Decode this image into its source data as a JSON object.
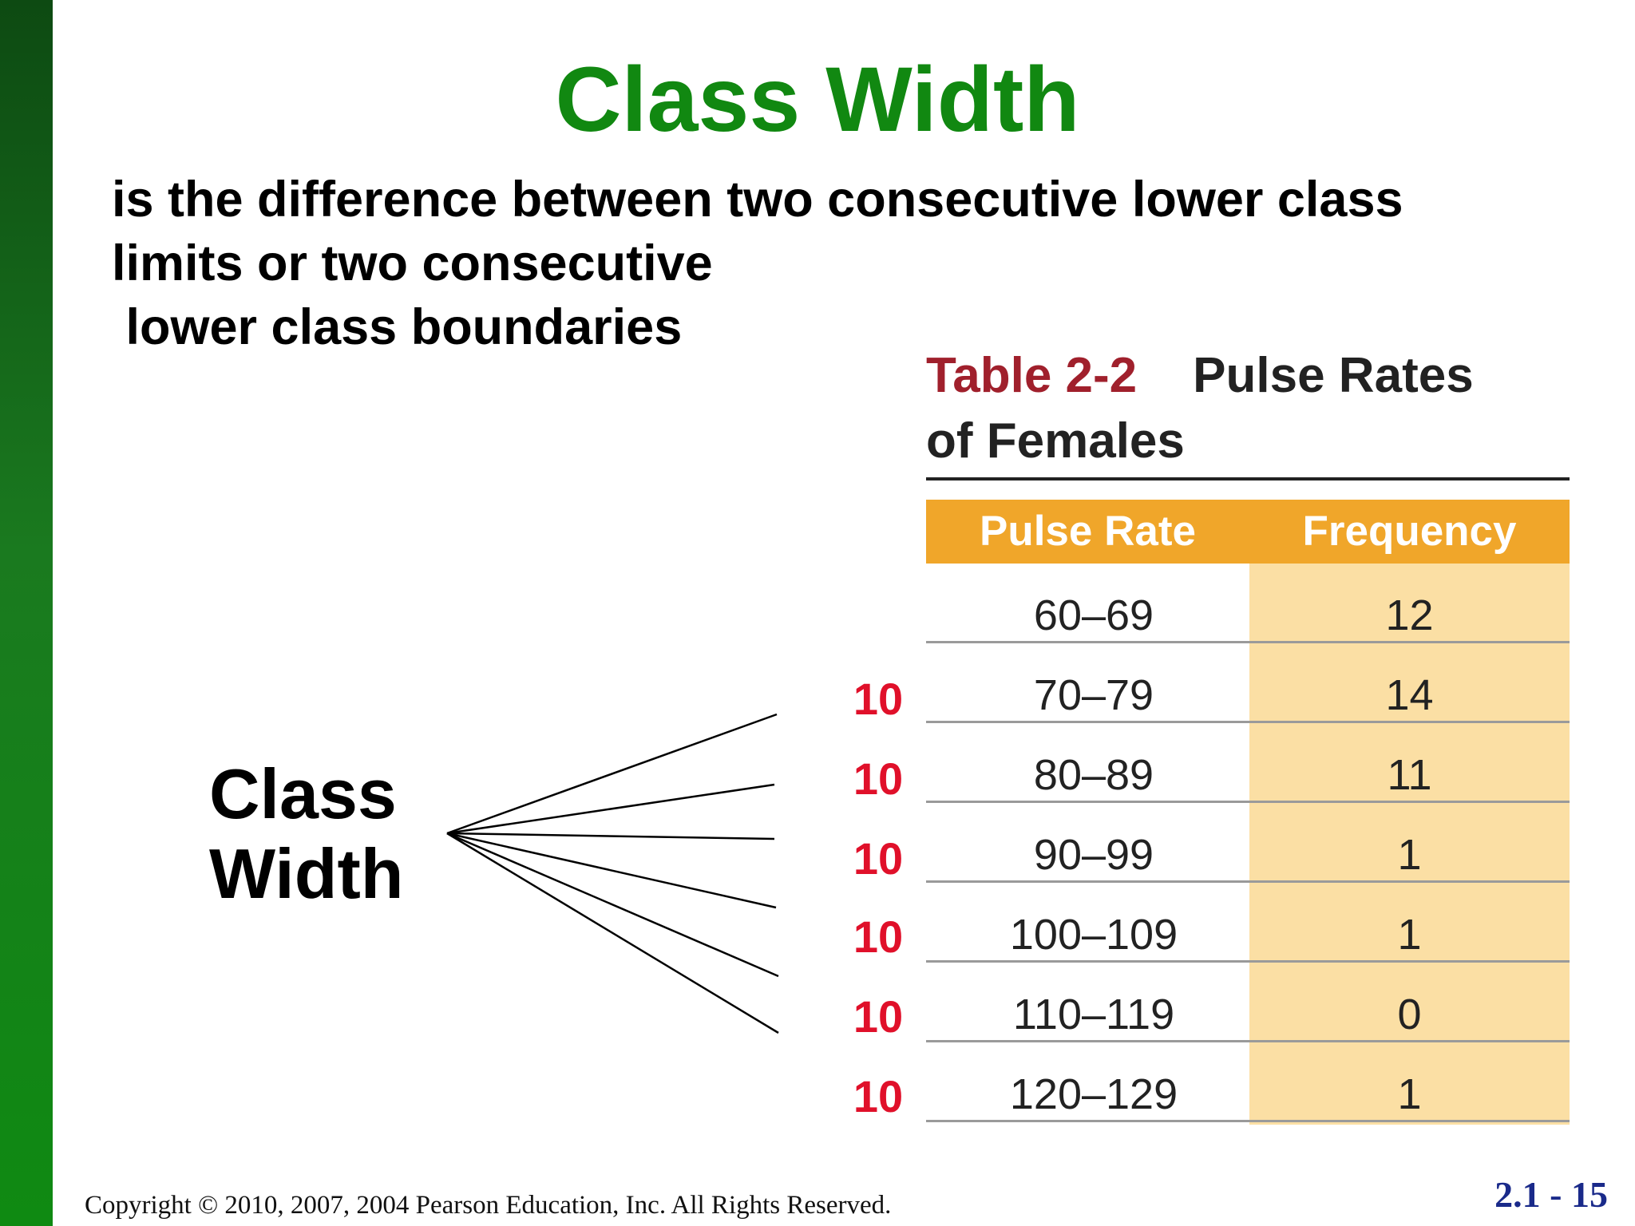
{
  "slide": {
    "title": "Class Width",
    "definition_lines": [
      "is the difference between two consecutive lower class",
      "limits or two consecutive",
      " lower class boundaries"
    ],
    "side_label_line1": "Class",
    "side_label_line2": "Width"
  },
  "table": {
    "number": "Table 2-2",
    "caption_rest": "Pulse Rates",
    "caption_line2": "of Females",
    "headers": [
      "Pulse Rate",
      "Frequency"
    ],
    "rows": [
      {
        "range": "60–69",
        "frequency": "12"
      },
      {
        "range": "70–79",
        "frequency": "14"
      },
      {
        "range": "80–89",
        "frequency": "11"
      },
      {
        "range": "90–99",
        "frequency": "1"
      },
      {
        "range": "100–109",
        "frequency": "1"
      },
      {
        "range": "110–119",
        "frequency": "0"
      },
      {
        "range": "120–129",
        "frequency": "1"
      }
    ]
  },
  "class_widths": [
    "10",
    "10",
    "10",
    "10",
    "10",
    "10"
  ],
  "footer": {
    "copyright": "Copyright © 2010, 2007, 2004 Pearson Education, Inc. All Rights Reserved.",
    "page": "2.1 - 15"
  },
  "colors": {
    "title": "#118811",
    "table_number": "#a0202c",
    "header_bg": "#f0a62a",
    "frequency_bg": "#fbdfa4",
    "class_width_value": "#e0102a",
    "page_number": "#1a2a8a"
  }
}
